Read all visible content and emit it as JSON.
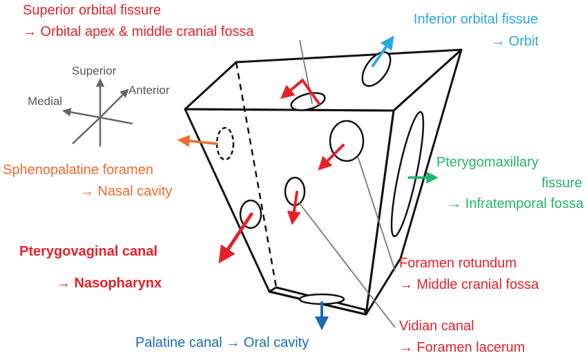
{
  "colors": {
    "red": "#e8202a",
    "cyan": "#29a8e0",
    "orange": "#ef6a2a",
    "green": "#22b36b",
    "blue": "#1a6bb5",
    "gray": "#666666",
    "black": "#111111"
  },
  "axes": {
    "superior": "Superior",
    "anterior": "Anterior",
    "medial": "Medial"
  },
  "labels": {
    "superior_orbital": {
      "line1": "Superior orbital fissure",
      "line2": "→ Orbital apex & middle cranial fossa"
    },
    "inferior_orbital": {
      "line1": "Inferior orbital fissue",
      "line2": "→ Orbit"
    },
    "sphenopalatine": {
      "line1": "Sphenopalatine foramen",
      "line2": "→ Nasal cavity"
    },
    "pterygomaxillary": {
      "line1": "Pterygomaxillary",
      "line2": "fissure",
      "line3": "→ Infratemporal fossa"
    },
    "pterygovaginal": {
      "line1": "Pterygovaginal canal",
      "line2": "→ Nasopharynx"
    },
    "rotundum": {
      "line1": "Foramen rotundum",
      "line2": "→ Middle cranial fossa"
    },
    "vidian": {
      "line1": "Vidian canal",
      "line2": "→ Foramen lacerum"
    },
    "palatine": {
      "line1": "Palatine canal → Oral cavity"
    }
  }
}
